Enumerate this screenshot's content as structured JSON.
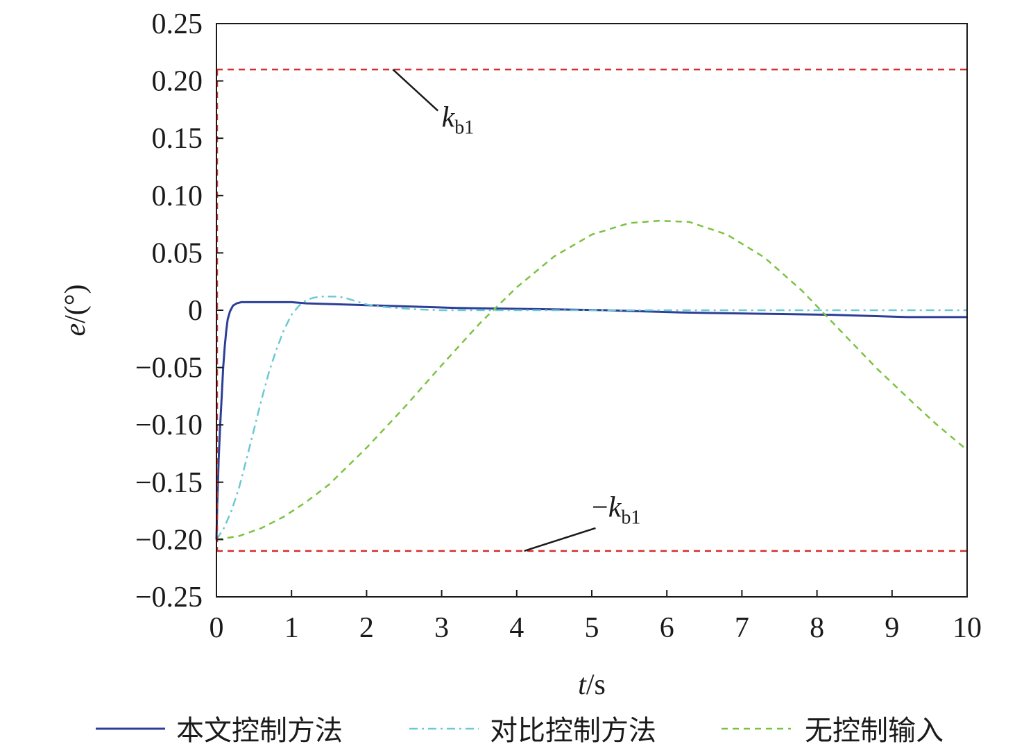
{
  "chart_data": {
    "type": "line",
    "xlabel": {
      "var": "t",
      "unit": "/s"
    },
    "ylabel": {
      "var": "e",
      "unit": "/(°)"
    },
    "xlim": [
      0,
      10
    ],
    "ylim": [
      -0.25,
      0.25
    ],
    "x_ticks": [
      0,
      1,
      2,
      3,
      4,
      5,
      6,
      7,
      8,
      9,
      10
    ],
    "x_tick_labels": [
      "0",
      "1",
      "2",
      "3",
      "4",
      "5",
      "6",
      "7",
      "8",
      "9",
      "10"
    ],
    "y_ticks": [
      0.25,
      0.2,
      0.15,
      0.1,
      0.05,
      0,
      -0.05,
      -0.1,
      -0.15,
      -0.2,
      -0.25
    ],
    "y_tick_labels": [
      "0.25",
      "0.20",
      "0.15",
      "0.10",
      "0.05",
      "0",
      "−0.05",
      "−0.10",
      "−0.15",
      "−0.20",
      "−0.25"
    ],
    "grid": false,
    "legend_position": "bottom",
    "series": [
      {
        "name": "本文控制方法",
        "color": "#2b3f96",
        "style": "solid",
        "x": [
          0,
          0.01,
          0.03,
          0.05,
          0.07,
          0.09,
          0.11,
          0.13,
          0.15,
          0.18,
          0.22,
          0.27,
          0.33,
          0.4,
          0.5,
          1.0,
          1.2,
          2.2,
          3.2,
          4.2,
          5.2,
          6.2,
          7.2,
          8.2,
          9.2,
          10.0
        ],
        "y": [
          -0.2,
          -0.17,
          -0.13,
          -0.1,
          -0.075,
          -0.05,
          -0.032,
          -0.018,
          -0.008,
          -0.001,
          0.004,
          0.006,
          0.007,
          0.007,
          0.007,
          0.007,
          0.006,
          0.004,
          0.002,
          0.001,
          0.0,
          -0.002,
          -0.003,
          -0.004,
          -0.006,
          -0.006
        ]
      },
      {
        "name": "对比控制方法",
        "color": "#6bc9d3",
        "style": "dashdot",
        "x": [
          0,
          0.1,
          0.2,
          0.3,
          0.4,
          0.5,
          0.6,
          0.7,
          0.8,
          0.9,
          1.0,
          1.1,
          1.2,
          1.3,
          1.4,
          1.5,
          1.6,
          1.7,
          1.8,
          1.9,
          2.0,
          2.2,
          2.4,
          2.6,
          2.8,
          3.0,
          4.0,
          5.0,
          6.0,
          7.0,
          8.0,
          9.0,
          10.0
        ],
        "y": [
          -0.2,
          -0.19,
          -0.175,
          -0.155,
          -0.13,
          -0.104,
          -0.078,
          -0.054,
          -0.034,
          -0.017,
          -0.004,
          0.004,
          0.009,
          0.011,
          0.012,
          0.012,
          0.012,
          0.011,
          0.009,
          0.007,
          0.005,
          0.003,
          0.002,
          0.001,
          0.0005,
          0.0,
          0.0,
          0.0,
          0.0,
          0.0,
          0.0,
          0.0,
          0.0
        ]
      },
      {
        "name": "无控制输入",
        "color": "#7cc242",
        "style": "dashed",
        "x": [
          0,
          0.3,
          0.6,
          0.9,
          1.2,
          1.5,
          2.0,
          2.5,
          3.0,
          3.5,
          4.0,
          4.5,
          5.0,
          5.5,
          5.9,
          6.3,
          6.8,
          7.3,
          7.8,
          8.3,
          8.8,
          9.3,
          9.6,
          10.0
        ],
        "y": [
          -0.2,
          -0.197,
          -0.19,
          -0.18,
          -0.167,
          -0.152,
          -0.12,
          -0.085,
          -0.048,
          -0.012,
          0.02,
          0.047,
          0.066,
          0.076,
          0.078,
          0.077,
          0.066,
          0.046,
          0.017,
          -0.017,
          -0.051,
          -0.082,
          -0.1,
          -0.122
        ]
      }
    ],
    "bounds": [
      {
        "value": 0.21,
        "color": "#d62f2f",
        "style": "dashed",
        "annotation": {
          "prefix": "",
          "var": "k",
          "sub": "b1"
        }
      },
      {
        "value": -0.21,
        "color": "#d62f2f",
        "style": "dashed",
        "annotation": {
          "prefix": "−",
          "var": "k",
          "sub": "b1"
        }
      }
    ]
  }
}
